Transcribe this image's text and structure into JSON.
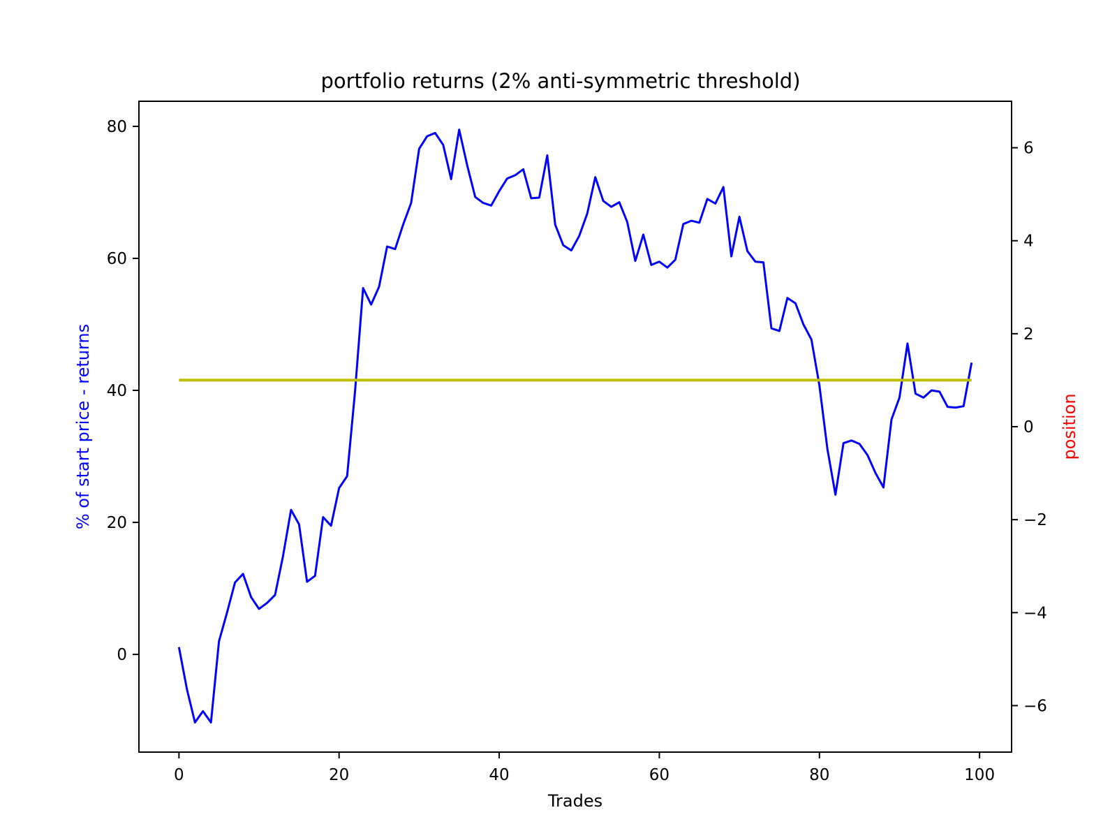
{
  "chart_data": {
    "type": "line",
    "title": "portfolio returns (2% anti-symmetric threshold)",
    "xlabel": "Trades",
    "ylabel_left": "% of start price - returns",
    "ylabel_right": "position",
    "xlim": [
      -5,
      104
    ],
    "ylim_left": [
      -14.8,
      83.8
    ],
    "ylim_right": [
      -7.0,
      7.0
    ],
    "x_ticks": [
      0,
      20,
      40,
      60,
      80,
      100
    ],
    "y_left_ticks": [
      0,
      20,
      40,
      60,
      80
    ],
    "y_right_ticks": [
      -6,
      -4,
      -2,
      0,
      2,
      4,
      6
    ],
    "y_right_tick_labels": [
      "−6",
      "−4",
      "−2",
      "0",
      "2",
      "4",
      "6"
    ],
    "grid": false,
    "series": [
      {
        "axis": "left",
        "color": "#0000ff",
        "x": [
          0,
          1,
          2,
          3,
          4,
          5,
          6,
          7,
          8,
          9,
          10,
          11,
          12,
          13,
          14,
          15,
          16,
          17,
          18,
          19,
          20,
          21,
          22,
          23,
          24,
          25,
          26,
          27,
          28,
          29,
          30,
          31,
          32,
          33,
          34,
          35,
          36,
          37,
          38,
          39,
          40,
          41,
          42,
          43,
          44,
          45,
          46,
          47,
          48,
          49,
          50,
          51,
          52,
          53,
          54,
          55,
          56,
          57,
          58,
          59,
          60,
          61,
          62,
          63,
          64,
          65,
          66,
          67,
          68,
          69,
          70,
          71,
          72,
          73,
          74,
          75,
          76,
          77,
          78,
          79,
          80,
          81,
          82,
          83,
          84,
          85,
          86,
          87,
          88,
          89,
          90,
          91,
          92,
          93,
          94,
          95,
          96,
          97,
          98,
          99
        ],
        "values": [
          1.1,
          -5.3,
          -10.3,
          -8.6,
          -10.3,
          2.0,
          6.3,
          10.9,
          12.2,
          8.7,
          6.9,
          7.8,
          9.0,
          14.9,
          21.9,
          19.7,
          11.0,
          11.9,
          20.8,
          19.5,
          25.2,
          27.0,
          39.9,
          55.5,
          53.0,
          55.7,
          61.8,
          61.4,
          65.1,
          68.4,
          76.6,
          78.5,
          79.0,
          77.2,
          72.0,
          79.5,
          74.1,
          69.3,
          68.4,
          68.0,
          70.2,
          72.1,
          72.6,
          73.5,
          69.1,
          69.2,
          75.6,
          65.1,
          62.0,
          61.2,
          63.4,
          66.8,
          72.3,
          68.7,
          67.8,
          68.5,
          65.5,
          59.6,
          63.6,
          59.0,
          59.5,
          58.6,
          59.8,
          65.2,
          65.7,
          65.4,
          69.0,
          68.3,
          70.8,
          60.3,
          66.3,
          61.1,
          59.5,
          59.4,
          49.4,
          49.0,
          54.0,
          53.2,
          50.0,
          47.7,
          40.7,
          31.1,
          24.2,
          32.0,
          32.4,
          31.9,
          30.2,
          27.5,
          25.3,
          35.6,
          38.9,
          47.1,
          39.5,
          38.9,
          40.0,
          39.8,
          37.5,
          37.4,
          37.6,
          44.2
        ]
      },
      {
        "axis": "right",
        "color": "#bfbf00",
        "x": [
          0,
          99
        ],
        "values": [
          1.0,
          1.0
        ]
      }
    ]
  }
}
